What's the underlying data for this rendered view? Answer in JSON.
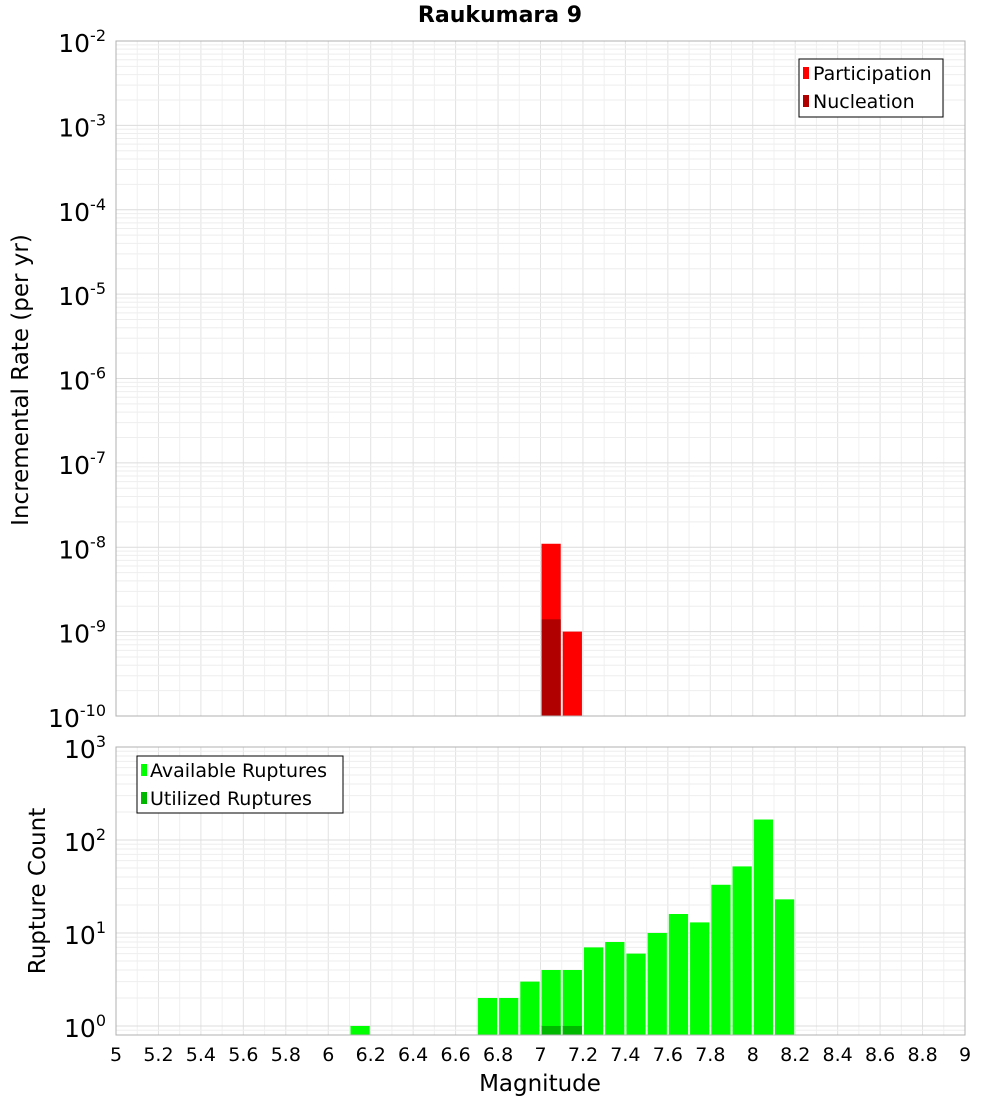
{
  "chart_data": [
    {
      "type": "bar",
      "title": "Raukumara 9",
      "xlabel": "",
      "ylabel": "Incremental Rate (per yr)",
      "yscale": "log",
      "ylim": [
        1e-10,
        0.01
      ],
      "xlim": [
        5,
        9
      ],
      "grid": true,
      "legend_position": "top-right",
      "y_tick_labels": [
        {
          "base": "10",
          "exp": "-10"
        },
        {
          "base": "10",
          "exp": "-9"
        },
        {
          "base": "10",
          "exp": "-8"
        },
        {
          "base": "10",
          "exp": "-7"
        },
        {
          "base": "10",
          "exp": "-6"
        },
        {
          "base": "10",
          "exp": "-5"
        },
        {
          "base": "10",
          "exp": "-4"
        },
        {
          "base": "10",
          "exp": "-3"
        },
        {
          "base": "10",
          "exp": "-2"
        }
      ],
      "series": [
        {
          "name": "Participation",
          "color": "#ff0000",
          "bin_width": 0.1,
          "x": [
            7.05,
            7.15
          ],
          "values": [
            1.1e-08,
            1e-09
          ]
        },
        {
          "name": "Nucleation",
          "color": "#b00000",
          "bin_width": 0.1,
          "x": [
            7.05
          ],
          "values": [
            1.4e-09
          ]
        }
      ]
    },
    {
      "type": "bar",
      "title": "",
      "xlabel": "Magnitude",
      "ylabel": "Rupture Count",
      "yscale": "log",
      "ylim": [
        0.8,
        1000
      ],
      "xlim": [
        5,
        9
      ],
      "grid": true,
      "legend_position": "top-left",
      "x_tick_labels": [
        "5",
        "5.2",
        "5.4",
        "5.6",
        "5.8",
        "6",
        "6.2",
        "6.4",
        "6.6",
        "6.8",
        "7",
        "7.2",
        "7.4",
        "7.6",
        "7.8",
        "8",
        "8.2",
        "8.4",
        "8.6",
        "8.8",
        "9"
      ],
      "y_tick_labels": [
        {
          "base": "10",
          "exp": "0"
        },
        {
          "base": "10",
          "exp": "1"
        },
        {
          "base": "10",
          "exp": "2"
        },
        {
          "base": "10",
          "exp": "3"
        }
      ],
      "series": [
        {
          "name": "Available Ruptures",
          "color": "#00ff00",
          "bin_width": 0.1,
          "x": [
            6.15,
            6.75,
            6.85,
            6.95,
            7.05,
            7.15,
            7.25,
            7.35,
            7.45,
            7.55,
            7.65,
            7.75,
            7.85,
            7.95,
            8.05,
            8.15
          ],
          "values": [
            1,
            2,
            2,
            3,
            4,
            4,
            7,
            8,
            6,
            10,
            16,
            13,
            33,
            52,
            166,
            23
          ]
        },
        {
          "name": "Utilized Ruptures",
          "color": "#00b800",
          "bin_width": 0.1,
          "x": [
            7.05,
            7.15
          ],
          "values": [
            1,
            1
          ]
        }
      ]
    }
  ]
}
